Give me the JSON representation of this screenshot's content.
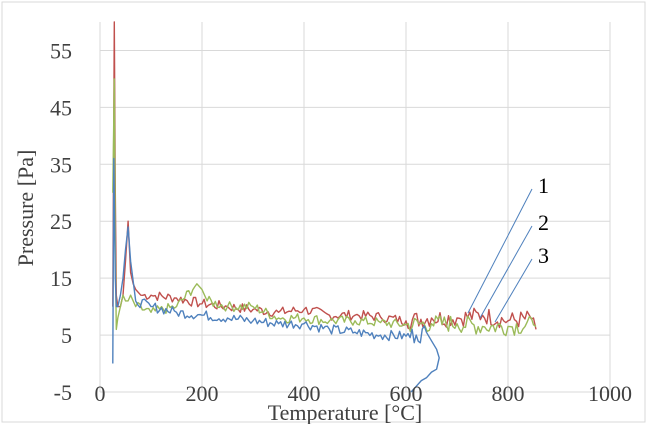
{
  "chart_data": {
    "type": "line",
    "title": "",
    "xlabel": "Temperature [°C]",
    "ylabel": "Pressure [Pa]",
    "xlim": [
      0,
      1000
    ],
    "ylim": [
      -5,
      60
    ],
    "x_ticks": [
      "0",
      "200",
      "400",
      "600",
      "800",
      "1000"
    ],
    "y_ticks": [
      "-5",
      "5",
      "15",
      "25",
      "35",
      "45",
      "55"
    ],
    "grid": true,
    "legend": "none",
    "annotations": [
      "1",
      "2",
      "3"
    ],
    "series": [
      {
        "color": "#c0504d",
        "x": [
          25,
          28,
          30,
          32,
          35,
          40,
          45,
          50,
          55,
          60,
          65,
          70,
          80,
          100,
          150,
          200,
          250,
          300,
          350,
          400,
          450,
          500,
          550,
          600,
          650,
          700,
          750,
          800,
          850,
          855
        ],
        "y": [
          10,
          60,
          30,
          12,
          10,
          10,
          12,
          18,
          25,
          16,
          14,
          13,
          12,
          12,
          11.5,
          10.5,
          10,
          9.5,
          9,
          9.5,
          8.5,
          8.5,
          8.2,
          7.5,
          8,
          8,
          8.5,
          7.5,
          8,
          6
        ]
      },
      {
        "color": "#9bbb59",
        "x": [
          25,
          28,
          30,
          32,
          35,
          40,
          45,
          50,
          55,
          60,
          70,
          100,
          150,
          190,
          200,
          210,
          250,
          300,
          350,
          400,
          450,
          500,
          550,
          600,
          650,
          700,
          750,
          800,
          850,
          855
        ],
        "y": [
          30,
          50,
          20,
          6,
          8,
          10,
          12,
          11,
          11,
          12,
          10,
          9,
          10,
          14,
          13,
          11,
          10,
          10,
          8,
          8,
          7.5,
          7.5,
          7.2,
          6.8,
          7,
          7,
          6.5,
          6.5,
          6.8,
          6.5
        ]
      },
      {
        "color": "#4f81bd",
        "x": [
          25,
          27,
          30,
          32,
          35,
          40,
          45,
          50,
          55,
          60,
          70,
          100,
          150,
          200,
          250,
          300,
          350,
          400,
          450,
          500,
          550,
          600,
          620,
          640,
          650,
          660,
          665,
          660,
          650,
          640,
          630,
          620,
          610
        ],
        "y": [
          0,
          36,
          15,
          10,
          10,
          12,
          15,
          20,
          24,
          18,
          11,
          10,
          9,
          8.5,
          8,
          7.5,
          7,
          7,
          6,
          5.5,
          5,
          4.8,
          5,
          5.5,
          4,
          2.5,
          1,
          -1,
          -1.5,
          -2.5,
          -3,
          -4,
          -5
        ]
      }
    ]
  }
}
